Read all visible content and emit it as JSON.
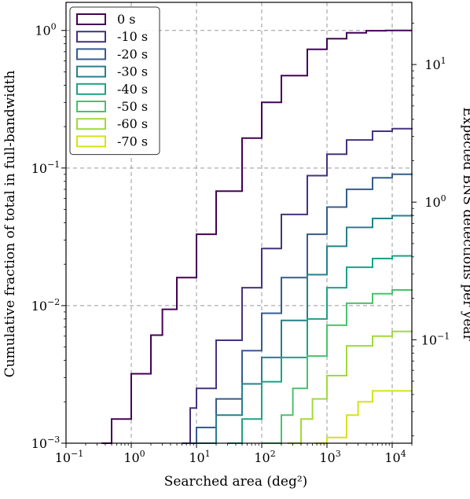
{
  "chart_data": {
    "type": "line",
    "xlabel": "Searched area (deg²)",
    "ylabel": "Cumulative fraction of total in full-bandwidth",
    "ylabel_right": "Expected BNS detections per year",
    "x_scale": "log",
    "y_scale": "log",
    "xlim": [
      0.1,
      20000
    ],
    "ylim": [
      0.001,
      1.6
    ],
    "right_ylim": [
      0.0177,
      28.3
    ],
    "grid": true,
    "grid_style": "dashed",
    "legend_position": "top-left",
    "x_ticks": [
      {
        "value": 0.1,
        "base": "10",
        "exp": "−1"
      },
      {
        "value": 1,
        "base": "10",
        "exp": "0"
      },
      {
        "value": 10,
        "base": "10",
        "exp": "1"
      },
      {
        "value": 100,
        "base": "10",
        "exp": "2"
      },
      {
        "value": 1000,
        "base": "10",
        "exp": "3"
      },
      {
        "value": 10000,
        "base": "10",
        "exp": "4"
      }
    ],
    "y_ticks": [
      {
        "value": 0.001,
        "base": "10",
        "exp": "−3"
      },
      {
        "value": 0.01,
        "base": "10",
        "exp": "−2"
      },
      {
        "value": 0.1,
        "base": "10",
        "exp": "−1"
      },
      {
        "value": 1,
        "base": "10",
        "exp": "0"
      }
    ],
    "right_ticks": [
      {
        "value": 0.1,
        "base": "10",
        "exp": "−1"
      },
      {
        "value": 1,
        "base": "10",
        "exp": "0"
      },
      {
        "value": 10,
        "base": "10",
        "exp": "1"
      }
    ],
    "series": [
      {
        "name": "0 s",
        "color": "#440154",
        "x": [
          0.35,
          0.5,
          1,
          2,
          3,
          5,
          10,
          20,
          50,
          100,
          200,
          500,
          1000,
          2000,
          4000,
          8000,
          20000
        ],
        "y": [
          0.001,
          0.0015,
          0.0032,
          0.0061,
          0.0094,
          0.016,
          0.033,
          0.068,
          0.165,
          0.3,
          0.47,
          0.73,
          0.87,
          0.96,
          0.995,
          1.0,
          1.0
        ]
      },
      {
        "name": "-10 s",
        "color": "#46327e",
        "x": [
          6,
          8,
          10,
          20,
          50,
          100,
          200,
          500,
          1000,
          2000,
          5000,
          10000,
          20000
        ],
        "y": [
          0.001,
          0.0018,
          0.0025,
          0.0056,
          0.0135,
          0.026,
          0.046,
          0.088,
          0.126,
          0.16,
          0.185,
          0.193,
          0.195
        ]
      },
      {
        "name": "-20 s",
        "color": "#365c8d",
        "x": [
          7,
          10,
          20,
          50,
          100,
          200,
          500,
          1000,
          2000,
          5000,
          10000,
          20000
        ],
        "y": [
          0.001,
          0.0013,
          0.0021,
          0.0047,
          0.0088,
          0.016,
          0.033,
          0.052,
          0.07,
          0.085,
          0.09,
          0.091
        ]
      },
      {
        "name": "-30 s",
        "color": "#277f8e",
        "x": [
          10,
          20,
          50,
          100,
          200,
          500,
          1000,
          2000,
          5000,
          10000,
          20000
        ],
        "y": [
          0.001,
          0.0016,
          0.0027,
          0.0042,
          0.0078,
          0.0168,
          0.027,
          0.037,
          0.043,
          0.045,
          0.046
        ]
      },
      {
        "name": "-40 s",
        "color": "#1fa187",
        "x": [
          30,
          50,
          100,
          200,
          500,
          1000,
          2000,
          5000,
          10000,
          20000
        ],
        "y": [
          0.001,
          0.0015,
          0.0028,
          0.0042,
          0.008,
          0.0135,
          0.019,
          0.022,
          0.023,
          0.023
        ]
      },
      {
        "name": "-50 s",
        "color": "#4ac16d",
        "x": [
          100,
          200,
          300,
          500,
          1000,
          2000,
          5000,
          10000,
          20000
        ],
        "y": [
          0.001,
          0.0016,
          0.0025,
          0.0043,
          0.0072,
          0.0104,
          0.0122,
          0.013,
          0.0131
        ]
      },
      {
        "name": "-60 s",
        "color": "#a0da39",
        "x": [
          250,
          400,
          600,
          1000,
          2000,
          5000,
          10000,
          20000
        ],
        "y": [
          0.001,
          0.0015,
          0.0021,
          0.0031,
          0.0051,
          0.006,
          0.0065,
          0.0066
        ]
      },
      {
        "name": "-70 s",
        "color": "#d5e21a",
        "x": [
          650,
          1000,
          2000,
          3000,
          5000,
          10000,
          20000
        ],
        "y": [
          0.001,
          0.0011,
          0.0016,
          0.002,
          0.0024,
          0.0024,
          0.0024
        ]
      }
    ]
  }
}
